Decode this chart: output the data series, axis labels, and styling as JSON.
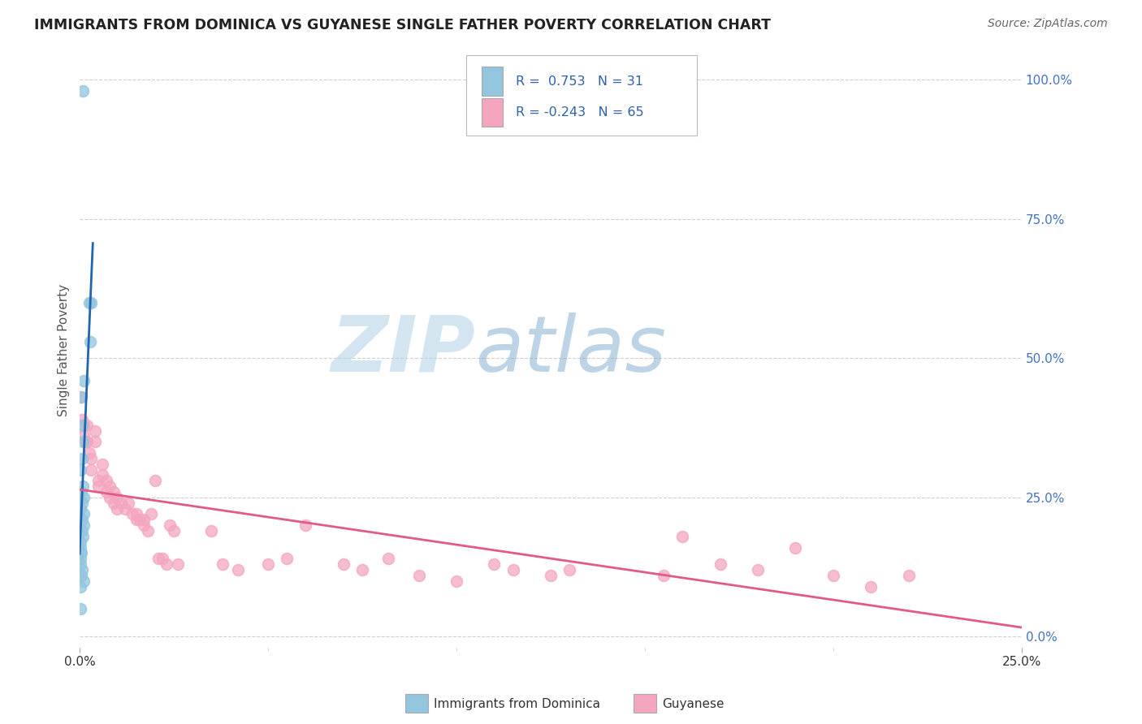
{
  "title": "IMMIGRANTS FROM DOMINICA VS GUYANESE SINGLE FATHER POVERTY CORRELATION CHART",
  "source": "Source: ZipAtlas.com",
  "ylabel": "Single Father Poverty",
  "legend_label1": "Immigrants from Dominica",
  "legend_label2": "Guyanese",
  "R1": 0.753,
  "N1": 31,
  "R2": -0.243,
  "N2": 65,
  "color_blue": "#92c5de",
  "color_pink": "#f4a6bf",
  "color_line_blue": "#2166ac",
  "color_line_pink": "#e05a8a",
  "xlim_max": 0.25,
  "ylim_min": -0.02,
  "ylim_max": 1.05,
  "blue_points_x": [
    0.0008,
    0.0025,
    0.003,
    0.0028,
    0.001,
    0.0005,
    0.0006,
    0.0008,
    0.0007,
    0.0003,
    0.0008,
    0.0005,
    0.001,
    0.0007,
    0.0003,
    0.001,
    0.0007,
    0.001,
    0.0007,
    0.0008,
    0.0003,
    0.0002,
    0.0005,
    0.0003,
    0.0002,
    0.0003,
    0.0007,
    0.0004,
    0.001,
    0.0002,
    0.0002
  ],
  "blue_points_y": [
    0.98,
    0.6,
    0.6,
    0.53,
    0.46,
    0.43,
    0.38,
    0.35,
    0.32,
    0.3,
    0.27,
    0.26,
    0.25,
    0.24,
    0.23,
    0.22,
    0.21,
    0.2,
    0.19,
    0.18,
    0.17,
    0.16,
    0.15,
    0.15,
    0.14,
    0.13,
    0.12,
    0.11,
    0.1,
    0.09,
    0.05
  ],
  "pink_points_x": [
    0.0003,
    0.0007,
    0.001,
    0.001,
    0.0015,
    0.002,
    0.002,
    0.0025,
    0.003,
    0.003,
    0.004,
    0.004,
    0.005,
    0.005,
    0.006,
    0.006,
    0.007,
    0.007,
    0.008,
    0.008,
    0.009,
    0.009,
    0.01,
    0.01,
    0.011,
    0.012,
    0.013,
    0.014,
    0.015,
    0.015,
    0.016,
    0.017,
    0.017,
    0.018,
    0.019,
    0.02,
    0.021,
    0.022,
    0.023,
    0.024,
    0.025,
    0.026,
    0.035,
    0.038,
    0.042,
    0.05,
    0.055,
    0.06,
    0.07,
    0.075,
    0.082,
    0.09,
    0.1,
    0.11,
    0.115,
    0.125,
    0.13,
    0.155,
    0.16,
    0.17,
    0.18,
    0.19,
    0.2,
    0.21,
    0.22
  ],
  "pink_points_y": [
    0.43,
    0.39,
    0.38,
    0.36,
    0.35,
    0.38,
    0.35,
    0.33,
    0.32,
    0.3,
    0.37,
    0.35,
    0.28,
    0.27,
    0.31,
    0.29,
    0.28,
    0.26,
    0.27,
    0.25,
    0.26,
    0.24,
    0.25,
    0.23,
    0.24,
    0.23,
    0.24,
    0.22,
    0.22,
    0.21,
    0.21,
    0.2,
    0.21,
    0.19,
    0.22,
    0.28,
    0.14,
    0.14,
    0.13,
    0.2,
    0.19,
    0.13,
    0.19,
    0.13,
    0.12,
    0.13,
    0.14,
    0.2,
    0.13,
    0.12,
    0.14,
    0.11,
    0.1,
    0.13,
    0.12,
    0.11,
    0.12,
    0.11,
    0.18,
    0.13,
    0.12,
    0.16,
    0.11,
    0.09,
    0.11
  ]
}
